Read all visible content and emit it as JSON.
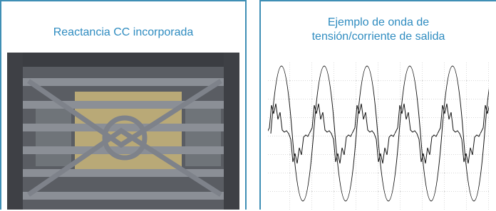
{
  "panels": [
    {
      "title": "Reactancia CC incorporada"
    },
    {
      "title_lines": [
        "Ejemplo de onda de",
        "tensión/corriente de salida"
      ]
    }
  ]
}
